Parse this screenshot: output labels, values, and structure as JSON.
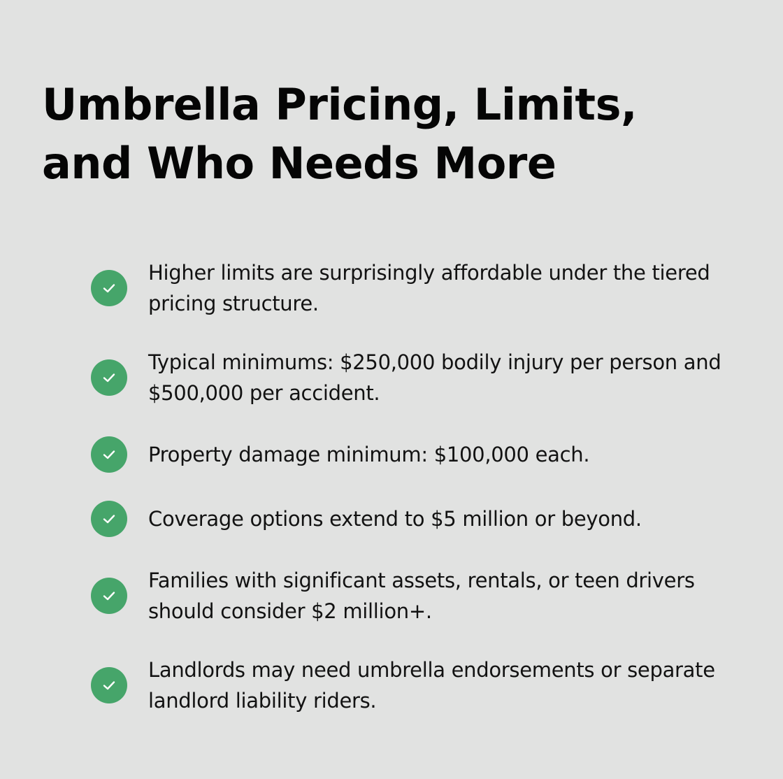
{
  "page": {
    "title": "Umbrella Pricing, Limits, and Who Needs More",
    "accent_color": "#46a56a",
    "background_color": "#e1e2e1"
  },
  "items": [
    {
      "icon": "check-icon",
      "text": "Higher limits are surprisingly affordable under the tiered pricing structure."
    },
    {
      "icon": "check-icon",
      "text": "Typical minimums: $250,000 bodily injury per person and $500,000 per accident."
    },
    {
      "icon": "check-icon",
      "text": "Property damage minimum: $100,000 each."
    },
    {
      "icon": "check-icon",
      "text": "Coverage options extend to $5 million or beyond."
    },
    {
      "icon": "check-icon",
      "text": "Families with significant assets, rentals, or teen drivers should consider $2 million+."
    },
    {
      "icon": "check-icon",
      "text": "Landlords may need umbrella endorsements or separate landlord liability riders."
    }
  ]
}
